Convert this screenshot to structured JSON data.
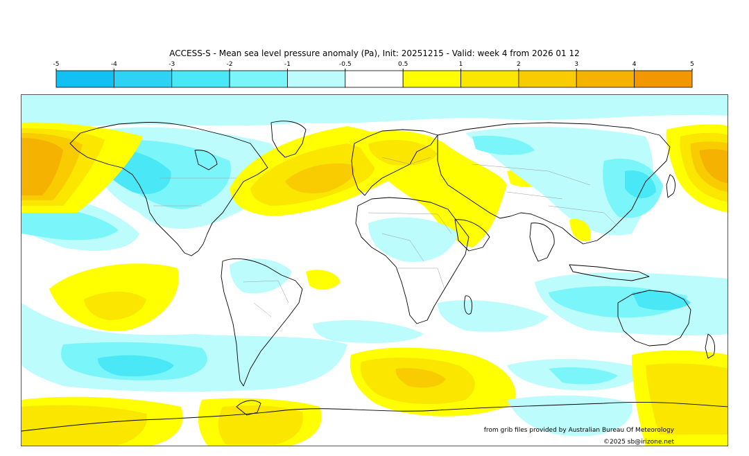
{
  "title": "ACCESS-S - Mean sea level pressure anomaly (Pa), Init: 20251215 - Valid: week 4 from 2026 01 12",
  "legend": {
    "ticks": [
      "-5",
      "-4",
      "-3",
      "-2",
      "-1",
      "-0.5",
      "0.5",
      "1",
      "2",
      "3",
      "4",
      "5"
    ],
    "colors": [
      "#13c0f3",
      "#2ed2f5",
      "#4ae8f7",
      "#7af6fa",
      "#bdfcfc",
      "#ffffff",
      "#ffff00",
      "#fbe600",
      "#f8cc00",
      "#f5b200",
      "#f39700"
    ]
  },
  "colors": {
    "neg_weak": "#bdfcfc",
    "neg_mid": "#7af6fa",
    "neg_strong": "#4ae8f7",
    "neg_stronger": "#2ed2f5",
    "pos_weak": "#ffff00",
    "pos_mid": "#fbe600",
    "pos_strong": "#f8cc00",
    "pos_stronger": "#f5b200",
    "pos_strongest": "#f39700",
    "coast": "#000000",
    "border": "#9a9a9a"
  },
  "credits": {
    "source": "from grib files provided by Australian Bureau Of Meteorology",
    "copyright": "©2025 sb@irizone.net"
  }
}
